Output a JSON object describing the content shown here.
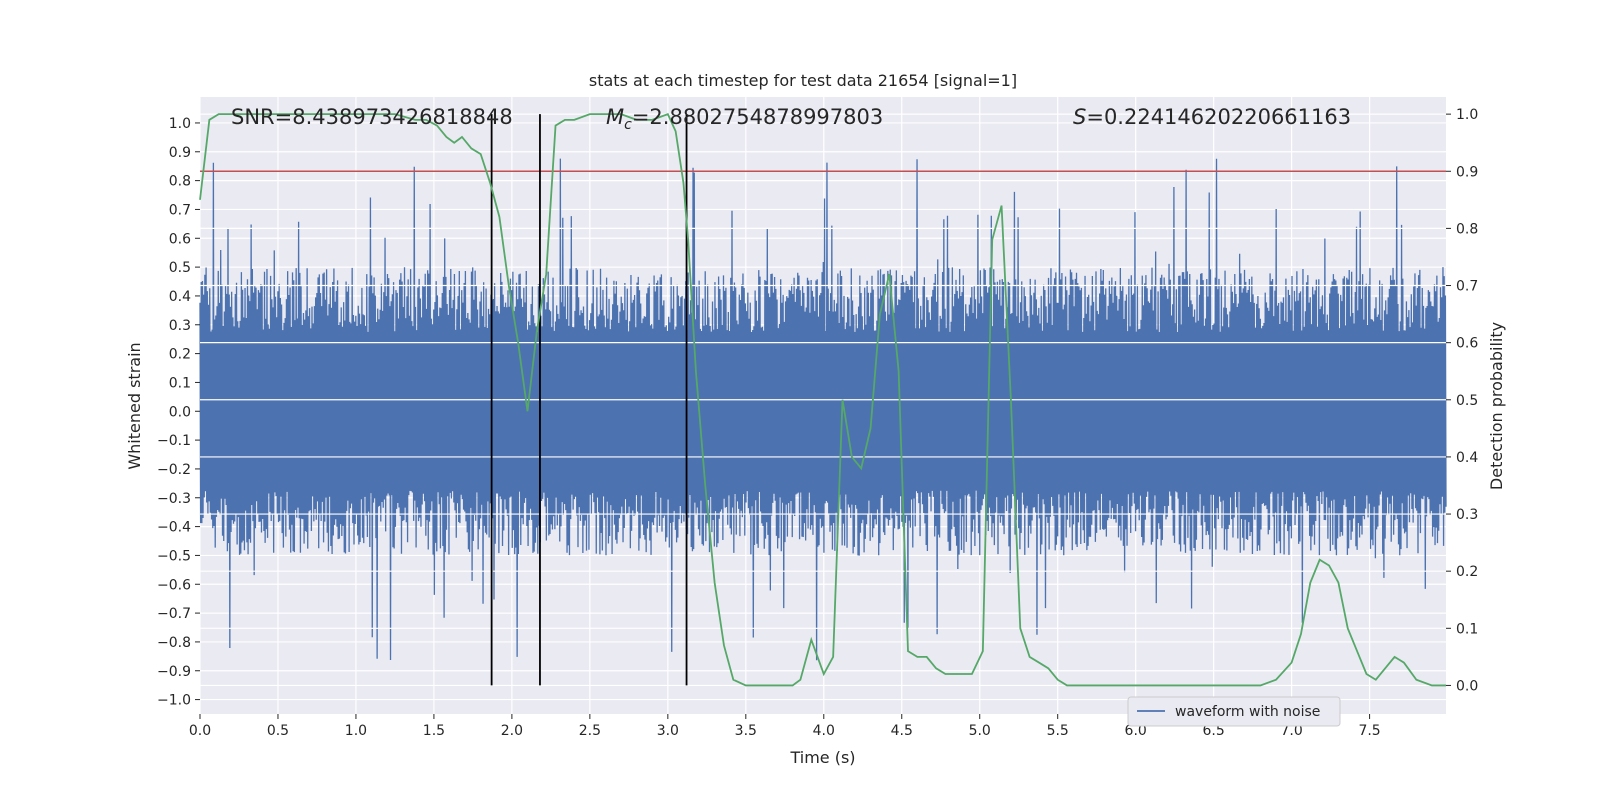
{
  "chart_data": {
    "type": "line",
    "title": "stats at each timestep for test data 21654 [signal=1]",
    "xlabel": "Time (s)",
    "ylabel_left": "Whitened strain",
    "ylabel_right": "Detection probability",
    "xlim": [
      0.0,
      7.99
    ],
    "ylim_left": [
      -1.05,
      1.09
    ],
    "ylim_right": [
      -0.05,
      1.03
    ],
    "x_ticks": [
      "0.0",
      "0.5",
      "1.0",
      "1.5",
      "2.0",
      "2.5",
      "3.0",
      "3.5",
      "4.0",
      "4.5",
      "5.0",
      "5.5",
      "6.0",
      "6.5",
      "7.0",
      "7.5"
    ],
    "y_ticks_left": [
      "−1.0",
      "−0.9",
      "−0.8",
      "−0.7",
      "−0.6",
      "−0.5",
      "−0.4",
      "−0.3",
      "−0.2",
      "−0.1",
      "0.0",
      "0.1",
      "0.2",
      "0.3",
      "0.4",
      "0.5",
      "0.6",
      "0.7",
      "0.8",
      "0.9",
      "1.0"
    ],
    "y_ticks_right": [
      "0.0",
      "0.1",
      "0.2",
      "0.3",
      "0.4",
      "0.5",
      "0.6",
      "0.7",
      "0.8",
      "0.9",
      "1.0"
    ],
    "grid": true,
    "legend": {
      "position": "bottom-right",
      "entries": [
        "waveform with noise"
      ]
    },
    "annotations": {
      "snr": "SNR=8.438973426818848",
      "mc_symbol": "M",
      "mc_sub": "c",
      "mc_value": "=2.8802754878997803",
      "s_symbol": "S",
      "s_value": "=0.22414620220661163"
    },
    "threshold": {
      "axis": "right",
      "value": 0.9,
      "color": "#c44e52"
    },
    "vertical_lines": [
      1.87,
      2.18,
      3.12
    ],
    "series": [
      {
        "name": "waveform with noise",
        "axis": "left",
        "color": "#4c72b0",
        "kind": "noise",
        "n_samples": 2048,
        "base_amplitude": 0.5,
        "peak_amplitude": 0.88
      },
      {
        "name": "detection probability",
        "axis": "right",
        "color": "#55a868",
        "x": [
          0.0,
          0.06,
          0.12,
          0.25,
          0.5,
          0.75,
          1.0,
          1.25,
          1.38,
          1.45,
          1.52,
          1.58,
          1.63,
          1.68,
          1.74,
          1.8,
          1.86,
          1.92,
          1.98,
          2.04,
          2.1,
          2.16,
          2.22,
          2.28,
          2.34,
          2.4,
          2.5,
          2.6,
          2.7,
          2.8,
          2.9,
          3.0,
          3.05,
          3.1,
          3.13,
          3.18,
          3.24,
          3.3,
          3.36,
          3.42,
          3.5,
          3.6,
          3.7,
          3.8,
          3.85,
          3.92,
          4.0,
          4.06,
          4.12,
          4.18,
          4.24,
          4.3,
          4.36,
          4.42,
          4.48,
          4.54,
          4.6,
          4.66,
          4.72,
          4.78,
          4.85,
          4.95,
          5.02,
          5.08,
          5.14,
          5.2,
          5.26,
          5.32,
          5.38,
          5.44,
          5.5,
          5.56,
          5.62,
          5.7,
          6.0,
          6.5,
          6.8,
          6.9,
          7.0,
          7.06,
          7.12,
          7.18,
          7.24,
          7.3,
          7.36,
          7.42,
          7.48,
          7.54,
          7.6,
          7.66,
          7.72,
          7.8,
          7.9,
          7.99
        ],
        "y": [
          0.85,
          0.99,
          1.0,
          1.0,
          1.0,
          1.0,
          1.0,
          1.0,
          0.99,
          0.99,
          0.98,
          0.96,
          0.95,
          0.96,
          0.94,
          0.93,
          0.88,
          0.82,
          0.7,
          0.6,
          0.48,
          0.62,
          0.72,
          0.98,
          0.99,
          0.99,
          1.0,
          1.0,
          1.0,
          0.99,
          0.99,
          1.0,
          0.97,
          0.88,
          0.78,
          0.55,
          0.35,
          0.18,
          0.07,
          0.01,
          0.0,
          0.0,
          0.0,
          0.0,
          0.01,
          0.08,
          0.02,
          0.05,
          0.5,
          0.4,
          0.38,
          0.45,
          0.65,
          0.72,
          0.55,
          0.06,
          0.05,
          0.05,
          0.03,
          0.02,
          0.02,
          0.02,
          0.06,
          0.78,
          0.84,
          0.5,
          0.1,
          0.05,
          0.04,
          0.03,
          0.01,
          0.0,
          0.0,
          0.0,
          0.0,
          0.0,
          0.0,
          0.01,
          0.04,
          0.09,
          0.18,
          0.22,
          0.21,
          0.18,
          0.1,
          0.06,
          0.02,
          0.01,
          0.03,
          0.05,
          0.04,
          0.01,
          0.0,
          0.0
        ]
      }
    ]
  }
}
